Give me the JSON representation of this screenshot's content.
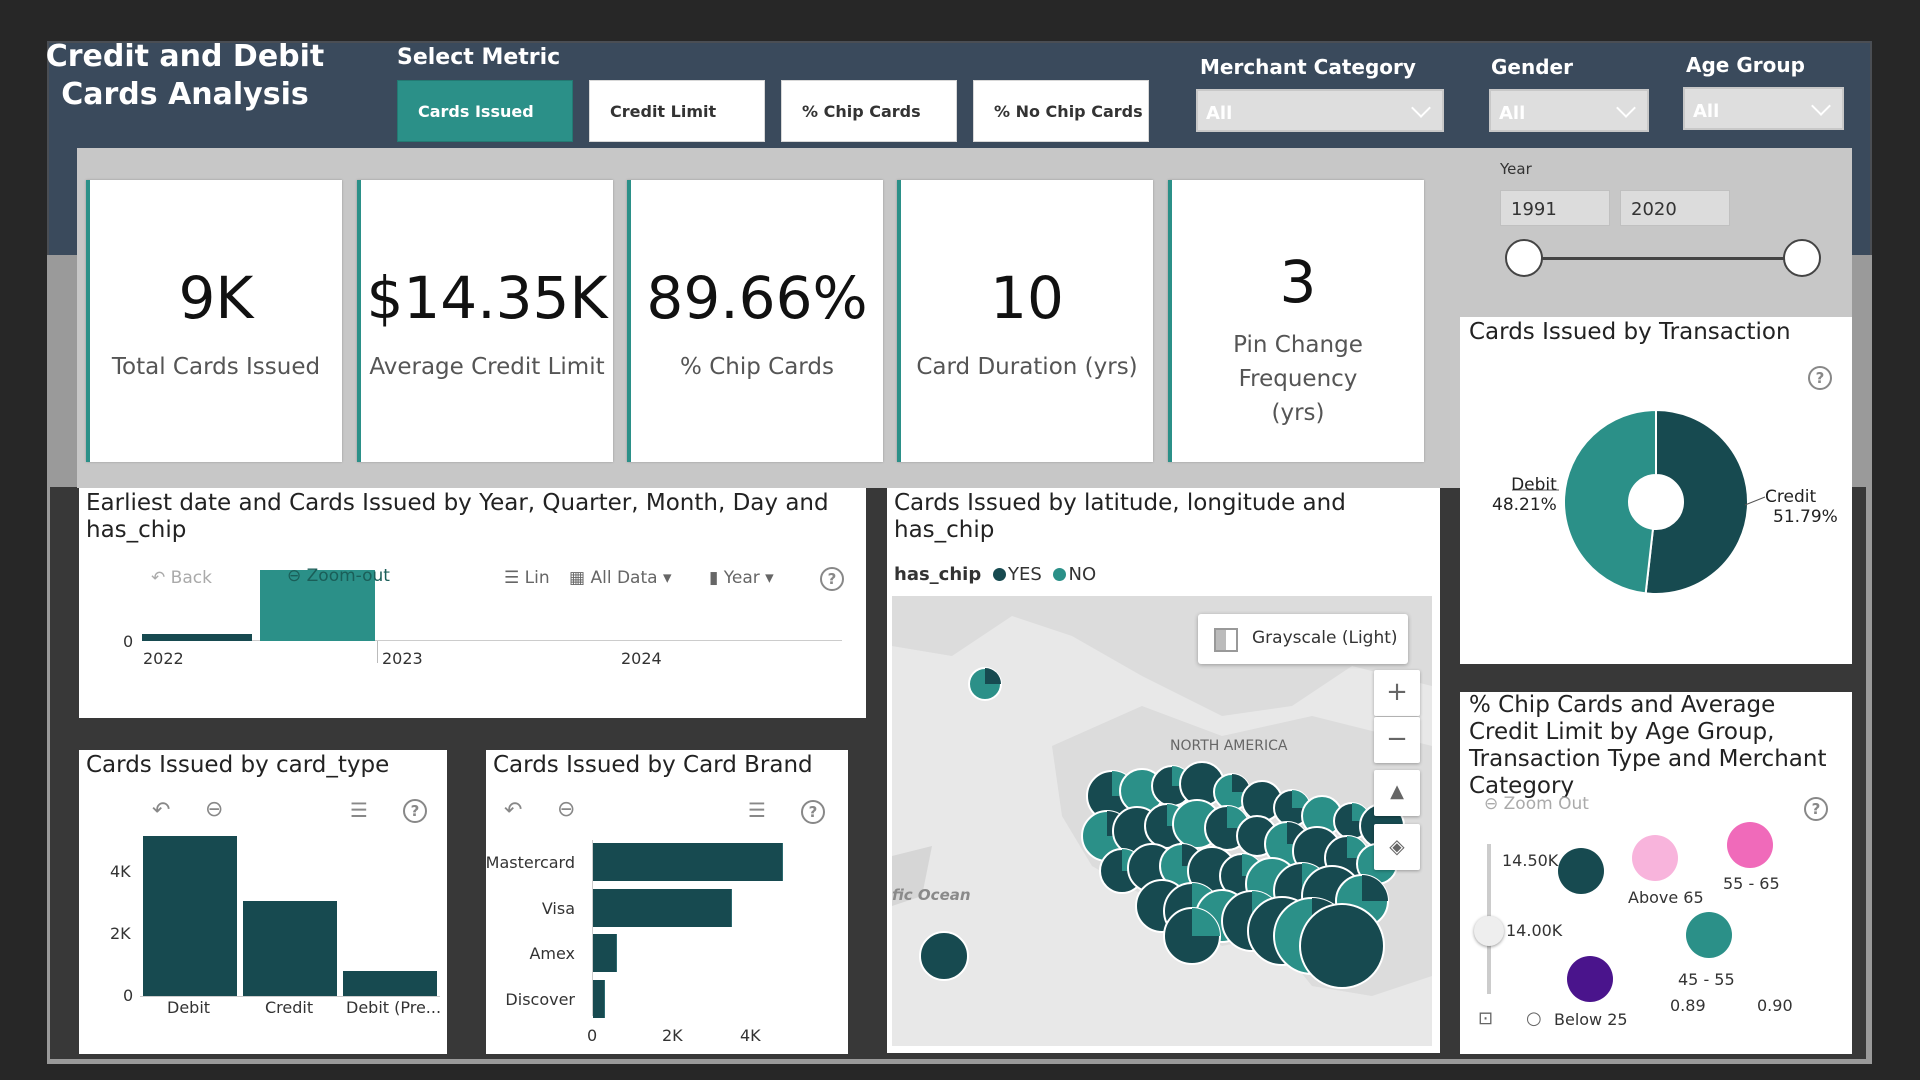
{
  "header": {
    "title": "Credit and Debit Cards Analysis",
    "select_metric_label": "Select Metric",
    "metrics": [
      "Cards Issued",
      "Credit Limit",
      "% Chip Cards",
      "% No Chip Cards"
    ],
    "merchant_category_label": "Merchant Category",
    "merchant_category_value": "All",
    "gender_label": "Gender",
    "gender_value": "All",
    "age_group_label": "Age Group",
    "age_group_value": "All"
  },
  "kpis": [
    {
      "value": "9K",
      "label": "Total Cards Issued"
    },
    {
      "value": "$14.35K",
      "label": "Average Credit Limit"
    },
    {
      "value": "89.66%",
      "label": "% Chip Cards"
    },
    {
      "value": "10",
      "label": "Card Duration (yrs)"
    },
    {
      "value": "3",
      "label": "Pin Change Frequency (yrs)"
    }
  ],
  "year_slicer": {
    "label": "Year",
    "start": "1991",
    "end": "2020"
  },
  "colors": {
    "teal": "#2b9088",
    "dark_teal": "#174a50",
    "pink": "#f48fce",
    "hot_pink": "#f06aba",
    "purple": "#4a148c"
  },
  "timeline_chart": {
    "title": "Earliest date and Cards Issued by Year, Quarter, Month, Day and has_chip",
    "toolbar": {
      "back": "Back",
      "zoom_out": "Zoom-out",
      "lin": "Lin",
      "all_data": "All Data",
      "year": "Year"
    },
    "chart_data": {
      "type": "bar",
      "categories": [
        "2022",
        "2023",
        "2024"
      ],
      "y_tick": "0",
      "series": [
        {
          "name": "YES",
          "color": "#174a50",
          "values": [
            0.1,
            0,
            0
          ]
        },
        {
          "name": "NO",
          "color": "#2b9088",
          "values": [
            1,
            0,
            0
          ]
        }
      ]
    }
  },
  "map_chart": {
    "title": "Cards Issued by latitude, longitude and has_chip",
    "legend_title": "has_chip",
    "legend_yes": "YES",
    "legend_no": "NO",
    "style_button": "Grayscale (Light)",
    "region_label": "NORTH AMERICA",
    "ocean_label": "fic Ocean"
  },
  "pie_chart": {
    "title": "Cards Issued by Transaction",
    "chart_data": {
      "type": "pie",
      "slices": [
        {
          "label": "Credit",
          "percent_text": "51.79%",
          "value": 51.79,
          "color": "#174a50"
        },
        {
          "label": "Debit",
          "percent_text": "48.21%",
          "value": 48.21,
          "color": "#2b9088"
        }
      ]
    }
  },
  "card_type_chart": {
    "title": "Cards Issued by card_type",
    "chart_data": {
      "type": "bar",
      "categories": [
        "Debit",
        "Credit",
        "Debit (Pre..."
      ],
      "values": [
        5200,
        3100,
        800
      ],
      "y_ticks": [
        "4K",
        "2K",
        "0"
      ],
      "ylim": [
        0,
        5400
      ]
    }
  },
  "card_brand_chart": {
    "title": "Cards Issued by Card Brand",
    "chart_data": {
      "type": "bar",
      "categories": [
        "Mastercard",
        "Visa",
        "Amex",
        "Discover"
      ],
      "values": [
        4800,
        3500,
        600,
        300
      ],
      "x_ticks": [
        "0",
        "2K",
        "4K"
      ],
      "xlim": [
        0,
        4800
      ]
    }
  },
  "scatter_chart": {
    "title": "% Chip Cards and Average Credit Limit by Age Group, Transaction Type and Merchant Category",
    "zoom_out": "Zoom Out",
    "y_ticks": [
      "14.50K",
      "14.00K"
    ],
    "x_ticks": [
      "0.89",
      "0.90"
    ],
    "chart_data": {
      "type": "scatter",
      "points": [
        {
          "label": "",
          "color": "#174a50"
        },
        {
          "label": "Above 65",
          "color": "#f8b4dc"
        },
        {
          "label": "55 - 65",
          "color": "#f06aba"
        },
        {
          "label": "45 - 55",
          "color": "#2b9088"
        },
        {
          "label": "Below 25",
          "color": "#4a148c"
        }
      ]
    }
  }
}
